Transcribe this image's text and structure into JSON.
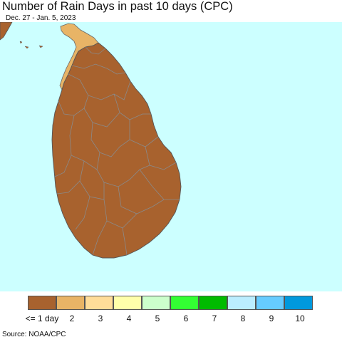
{
  "title": "Number of Rain Days in past 10 days (CPC)",
  "subtitle": "Dec. 27 - Jan. 5, 2023",
  "source": "Source: NOAA/CPC",
  "colors": {
    "ocean": "#ccffff",
    "dry": "#a8622e",
    "two_days": "#e8b466",
    "district_border": "#8a8a8a"
  },
  "legend": {
    "items": [
      {
        "label": "<= 1 day",
        "color": "#a8622e"
      },
      {
        "label": "2",
        "color": "#e8b466"
      },
      {
        "label": "3",
        "color": "#ffdd99"
      },
      {
        "label": "4",
        "color": "#ffffaa"
      },
      {
        "label": "5",
        "color": "#ccffcc"
      },
      {
        "label": "6",
        "color": "#33ff33"
      },
      {
        "label": "7",
        "color": "#00bb00"
      },
      {
        "label": "8",
        "color": "#bbeeff"
      },
      {
        "label": "9",
        "color": "#66ccff"
      },
      {
        "label": "10",
        "color": "#0099dd"
      }
    ]
  }
}
